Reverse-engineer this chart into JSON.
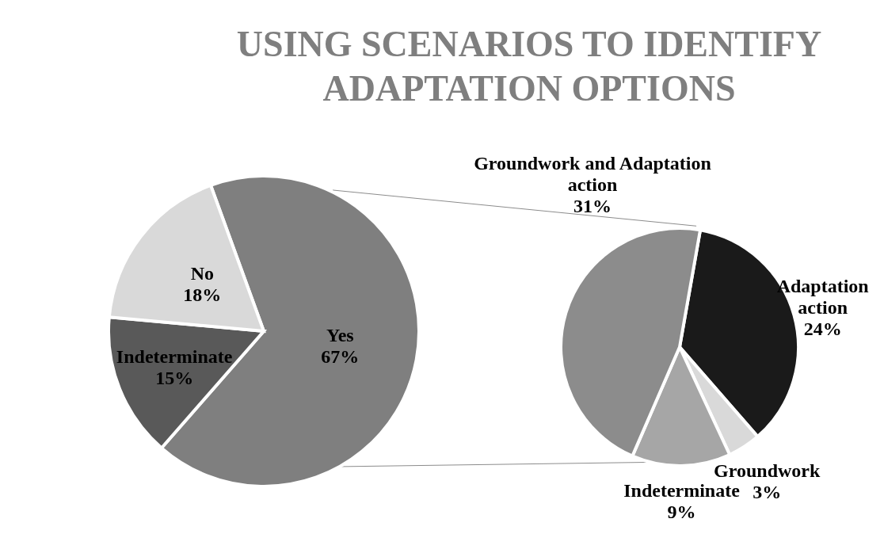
{
  "chart_data": [
    {
      "type": "pie",
      "title": "USING SCENARIOS TO IDENTIFY ADAPTATION OPTIONS",
      "categories": [
        "Yes",
        "Indeterminate",
        "No"
      ],
      "values": [
        67,
        15,
        18
      ],
      "colors": [
        "#7f7f7f",
        "#595959",
        "#d9d9d9"
      ],
      "value_labels": [
        "67%",
        "15%",
        "18%"
      ],
      "legend": false
    },
    {
      "type": "pie",
      "categories": [
        "Adaptation action",
        "Groundwork",
        "Indeterminate",
        "Groundwork and Adaptation action"
      ],
      "values": [
        24,
        3,
        9,
        31
      ],
      "colors": [
        "#1a1a1a",
        "#d9d9d9",
        "#a6a6a6",
        "#8c8c8c"
      ],
      "value_labels": [
        "24%",
        "3%",
        "9%",
        "31%"
      ],
      "legend": false
    }
  ]
}
